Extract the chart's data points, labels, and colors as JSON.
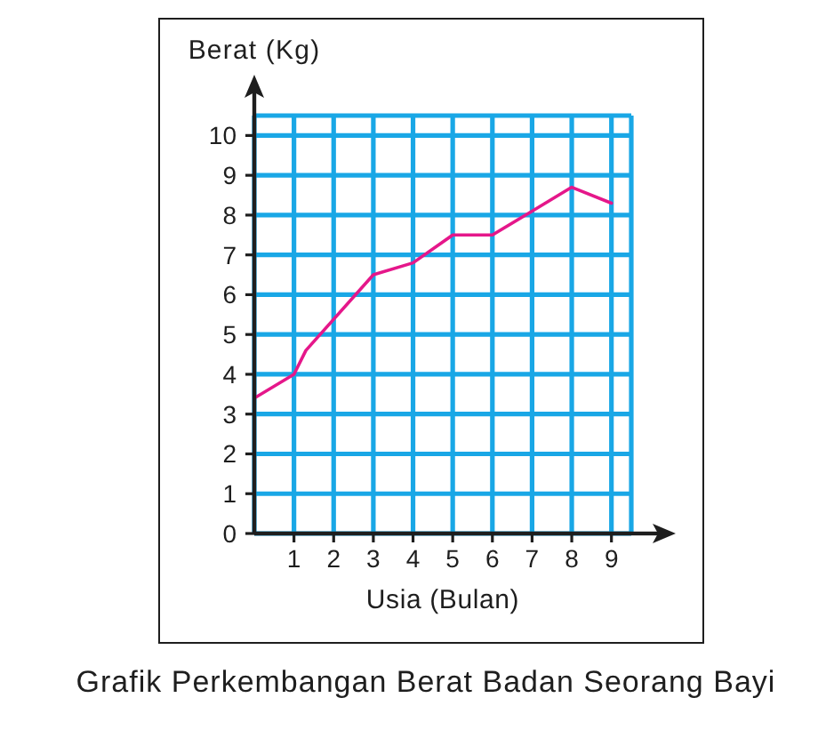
{
  "chart_data": {
    "type": "line",
    "title": "Grafik Perkembangan Berat Badan Seorang Bayi",
    "xlabel": "Usia (Bulan)",
    "ylabel": "Berat (Kg)",
    "x": [
      0,
      1,
      1.3,
      3,
      4,
      5,
      6,
      7,
      8,
      9
    ],
    "series": [
      {
        "color": "#e5178a",
        "values": [
          3.4,
          4.0,
          4.6,
          6.5,
          6.8,
          7.5,
          7.5,
          8.1,
          8.7,
          8.3
        ]
      }
    ],
    "xlim": [
      0,
      9.5
    ],
    "ylim": [
      0,
      10.5
    ],
    "xticks": [
      1,
      2,
      3,
      4,
      5,
      6,
      7,
      8,
      9
    ],
    "yticks": [
      0,
      1,
      2,
      3,
      4,
      5,
      6,
      7,
      8,
      9,
      10
    ],
    "grid": true,
    "line_style": "solid"
  }
}
